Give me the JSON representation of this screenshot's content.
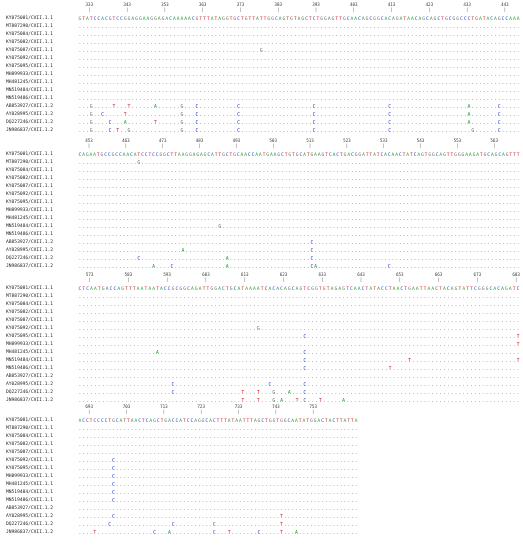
{
  "colors": {
    "A": "#1f9d2c",
    "C": "#1f3fd0",
    "G": "#6b6b6b",
    "T": "#d6222a",
    "dot": "#7a7a7a"
  },
  "blocks": [
    {
      "ticks": [
        "333",
        "343",
        "353",
        "363",
        "373",
        "383",
        "393",
        "403",
        "413",
        "423",
        "433",
        "443"
      ],
      "consensus": "GTATCCACGTCCGGAGGAAGGAGACAAAAACGTTTATAGGTGCTGTTATTGGCAGTGTAGCTCTGGAGTTGCAACAGCGGCACAGATAACAGCAGCTGCGGCCCTGATACAGCCAAA",
      "rows": [
        {
          "label": "KY075081/CVII.1.1",
          "variants": []
        },
        {
          "label": "MT887290/CVII.1.1",
          "variants": []
        },
        {
          "label": "KY075084/CVII.1.1",
          "variants": []
        },
        {
          "label": "KY075082/CVII.1.1",
          "variants": []
        },
        {
          "label": "KY075087/CVII.1.1",
          "variants": []
        },
        {
          "label": "KY075092/CVII.1.1",
          "variants": []
        },
        {
          "label": "KY075095/CVII.1.1",
          "variants": []
        },
        {
          "label": "MH899933/CVII.1.1",
          "variants": []
        },
        {
          "label": "MH481245/CVII.1.1",
          "variants": []
        },
        {
          "label": "MN519484/CVII.1.1",
          "variants": []
        },
        {
          "label": "MN519486/CVII.1.1",
          "variants": []
        },
        {
          "label": "AB853927/CVII.1.2",
          "variants": []
        },
        {
          "label": "AY028995/CVII.1.2",
          "variants": []
        },
        {
          "label": "DQ227246/CVII.1.2",
          "variants": []
        },
        {
          "label": "JN986837/CVII.1.2",
          "variants": []
        }
      ]
    },
    {
      "ticks": [
        "453",
        "463",
        "473",
        "483",
        "493",
        "503",
        "513",
        "523",
        "533",
        "543",
        "553",
        "563"
      ],
      "consensus": "CAGAATGCCGCCAACATCCTCCGGCTTAAGGAGAGCATTGCTGCAACCAATGAAGCTGTGCATGAAGTCACTGACGGATTATCACAACTATCAGTGGCAGTTGGGAAGATGCAGCAGTTT",
      "rows": [
        {
          "label": "KY075081/CVII.1.1",
          "variants": []
        },
        {
          "label": "MT887290/CVII.1.1",
          "variants": []
        },
        {
          "label": "KY075084/CVII.1.1",
          "variants": []
        },
        {
          "label": "KY075082/CVII.1.1",
          "variants": []
        },
        {
          "label": "KY075087/CVII.1.1",
          "variants": []
        },
        {
          "label": "KY075092/CVII.1.1",
          "variants": []
        },
        {
          "label": "KY075095/CVII.1.1",
          "variants": []
        },
        {
          "label": "MH899933/CVII.1.1",
          "variants": []
        },
        {
          "label": "MH481245/CVII.1.1",
          "variants": []
        },
        {
          "label": "MN519484/CVII.1.1",
          "variants": []
        },
        {
          "label": "MN519486/CVII.1.1",
          "variants": []
        },
        {
          "label": "AB853927/CVII.1.2",
          "variants": []
        },
        {
          "label": "AY028995/CVII.1.2",
          "variants": []
        },
        {
          "label": "DQ227246/CVII.1.2",
          "variants": []
        },
        {
          "label": "JN986837/CVII.1.2",
          "variants": []
        }
      ]
    },
    {
      "ticks": [
        "573",
        "583",
        "593",
        "603",
        "613",
        "623",
        "633",
        "643",
        "653",
        "663",
        "673",
        "683"
      ],
      "consensus": "CTCAATGACCAGTTTAATAATACCGCGGCAGATTGGACTGCATAAAATCACACAGCAGTCGGTGTAGAGTCAACTATACCTAACTGAATTAACTACAGTATTCGGGCACAGATC",
      "rows": [
        {
          "label": "KY075081/CVII.1.1",
          "variants": []
        },
        {
          "label": "MT887290/CVII.1.1",
          "variants": []
        },
        {
          "label": "KY075084/CVII.1.1",
          "variants": []
        },
        {
          "label": "KY075082/CVII.1.1",
          "variants": []
        },
        {
          "label": "KY075087/CVII.1.1",
          "variants": []
        },
        {
          "label": "KY075092/CVII.1.1",
          "variants": []
        },
        {
          "label": "KY075095/CVII.1.1",
          "variants": []
        },
        {
          "label": "MH899933/CVII.1.1",
          "variants": []
        },
        {
          "label": "MH481245/CVII.1.1",
          "variants": []
        },
        {
          "label": "MN519484/CVII.1.1",
          "variants": []
        },
        {
          "label": "MN519486/CVII.1.1",
          "variants": []
        },
        {
          "label": "AB853927/CVII.1.2",
          "variants": []
        },
        {
          "label": "AY028995/CVII.1.2",
          "variants": []
        },
        {
          "label": "DQ227246/CVII.1.2",
          "variants": []
        },
        {
          "label": "JN986837/CVII.1.2",
          "variants": []
        }
      ]
    },
    {
      "ticks": [
        "693",
        "703",
        "713",
        "723",
        "733",
        "743",
        "753"
      ],
      "consensus": "ACCTCCCCTGCATTAACTCAGCTGACCATCCAGGCACTTTATAATTTAGCTGGTGGCAATATGGACTACTTATTA",
      "rows": [
        {
          "label": "KY075081/CVII.1.1",
          "variants": []
        },
        {
          "label": "MT887290/CVII.1.1",
          "variants": []
        },
        {
          "label": "KY075084/CVII.1.1",
          "variants": []
        },
        {
          "label": "KY075082/CVII.1.1",
          "variants": []
        },
        {
          "label": "KY075087/CVII.1.1",
          "variants": []
        },
        {
          "label": "KY075092/CVII.1.1",
          "variants": []
        },
        {
          "label": "KY075095/CVII.1.1",
          "variants": []
        },
        {
          "label": "MH899933/CVII.1.1",
          "variants": []
        },
        {
          "label": "MH481245/CVII.1.1",
          "variants": []
        },
        {
          "label": "MN519484/CVII.1.1",
          "variants": []
        },
        {
          "label": "MN519486/CVII.1.1",
          "variants": []
        },
        {
          "label": "AB853927/CVII.1.2",
          "variants": []
        },
        {
          "label": "AY028995/CVII.1.2",
          "variants": []
        },
        {
          "label": "DQ227246/CVII.1.2",
          "variants": []
        },
        {
          "label": "JN986837/CVII.1.2",
          "variants": []
        }
      ]
    }
  ]
}
